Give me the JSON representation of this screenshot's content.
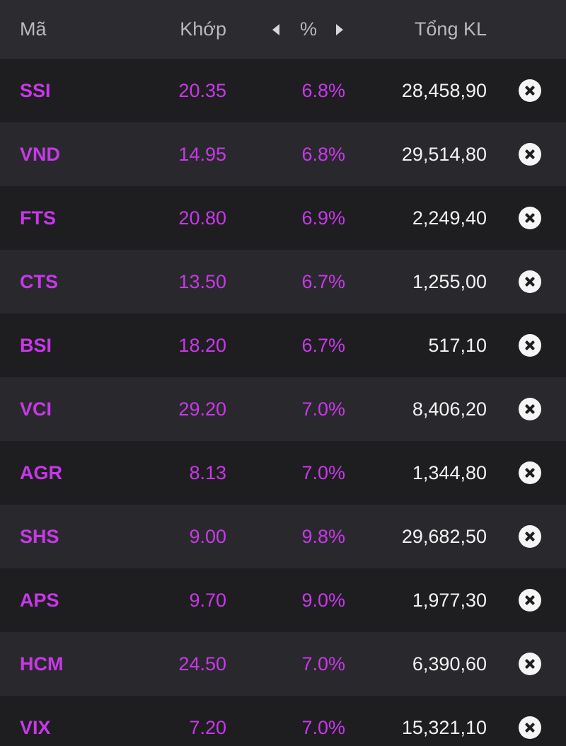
{
  "header": {
    "code_label": "Mã",
    "price_label": "Khớp",
    "pct_label": "%",
    "volume_label": "Tổng KL"
  },
  "rows": [
    {
      "code": "SSI",
      "price": "20.35",
      "pct": "6.8%",
      "volume": "28,458,90"
    },
    {
      "code": "VND",
      "price": "14.95",
      "pct": "6.8%",
      "volume": "29,514,80"
    },
    {
      "code": "FTS",
      "price": "20.80",
      "pct": "6.9%",
      "volume": "2,249,40"
    },
    {
      "code": "CTS",
      "price": "13.50",
      "pct": "6.7%",
      "volume": "1,255,00"
    },
    {
      "code": "BSI",
      "price": "18.20",
      "pct": "6.7%",
      "volume": "517,10"
    },
    {
      "code": "VCI",
      "price": "29.20",
      "pct": "7.0%",
      "volume": "8,406,20"
    },
    {
      "code": "AGR",
      "price": "8.13",
      "pct": "7.0%",
      "volume": "1,344,80"
    },
    {
      "code": "SHS",
      "price": "9.00",
      "pct": "9.8%",
      "volume": "29,682,50"
    },
    {
      "code": "APS",
      "price": "9.70",
      "pct": "9.0%",
      "volume": "1,977,30"
    },
    {
      "code": "HCM",
      "price": "24.50",
      "pct": "7.0%",
      "volume": "6,390,60"
    },
    {
      "code": "VIX",
      "price": "7.20",
      "pct": "7.0%",
      "volume": "15,321,10"
    }
  ],
  "colors": {
    "ceiling": "#c838e8",
    "header_bg": "#2c2c30",
    "row_bg_dark": "#1e1e21",
    "row_bg_light": "#29292d",
    "volume_text": "#f2f2f2"
  },
  "icons": {
    "prev": "chevron-left-icon",
    "next": "chevron-right-icon",
    "remove": "close-circle-icon"
  }
}
